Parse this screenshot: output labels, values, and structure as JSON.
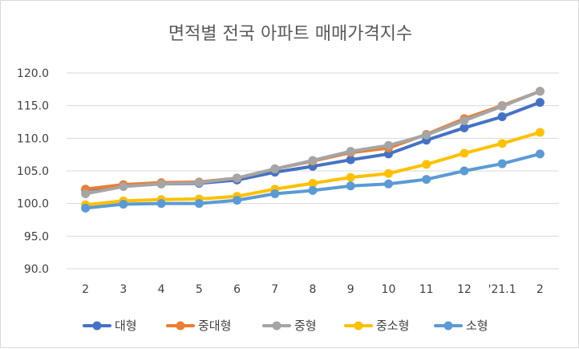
{
  "chart_data": {
    "type": "line",
    "title": "면적별 전국 아파트 매매가격지수",
    "categories": [
      "2",
      "3",
      "4",
      "5",
      "6",
      "7",
      "8",
      "9",
      "10",
      "11",
      "12",
      "'21.1",
      "2"
    ],
    "ylim": [
      90,
      120
    ],
    "yticks": [
      "90.0",
      "95.0",
      "100.0",
      "105.0",
      "110.0",
      "115.0",
      "120.0"
    ],
    "grid": true,
    "legend_position": "bottom",
    "series": [
      {
        "name": "대형",
        "color": "#4472c4",
        "values": [
          102.1,
          102.8,
          103.0,
          103.1,
          103.6,
          104.8,
          105.7,
          106.7,
          107.6,
          109.7,
          111.6,
          113.3,
          115.5
        ]
      },
      {
        "name": "중대형",
        "color": "#ed7d31",
        "values": [
          102.2,
          102.9,
          103.2,
          103.3,
          103.9,
          105.3,
          106.5,
          107.8,
          108.5,
          110.6,
          113.0,
          115.0,
          117.2
        ]
      },
      {
        "name": "중형",
        "color": "#a5a5a5",
        "values": [
          101.5,
          102.6,
          103.0,
          103.2,
          103.9,
          105.3,
          106.6,
          108.0,
          108.9,
          110.5,
          112.7,
          114.9,
          117.2
        ]
      },
      {
        "name": "중소형",
        "color": "#ffc000",
        "values": [
          99.8,
          100.4,
          100.6,
          100.7,
          101.1,
          102.2,
          103.1,
          104.0,
          104.6,
          106.0,
          107.7,
          109.2,
          110.9
        ]
      },
      {
        "name": "소형",
        "color": "#5b9bd5",
        "values": [
          99.3,
          99.9,
          100.0,
          100.0,
          100.5,
          101.5,
          102.0,
          102.7,
          103.0,
          103.7,
          105.0,
          106.1,
          107.6
        ]
      }
    ]
  }
}
